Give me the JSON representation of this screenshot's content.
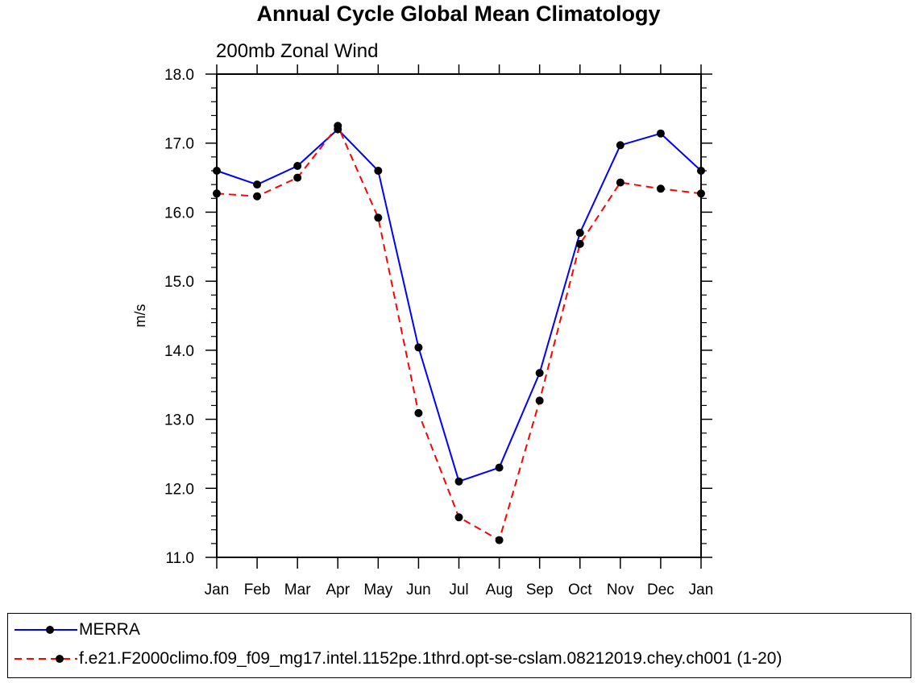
{
  "chart_data": {
    "type": "line",
    "title": "Annual Cycle Global Mean Climatology",
    "subtitle": "200mb Zonal Wind",
    "xlabel": "",
    "ylabel": "m/s",
    "categories": [
      "Jan",
      "Feb",
      "Mar",
      "Apr",
      "May",
      "Jun",
      "Jul",
      "Aug",
      "Sep",
      "Oct",
      "Nov",
      "Dec",
      "Jan"
    ],
    "ylim": [
      11.0,
      18.0
    ],
    "yticks": [
      "11.0",
      "12.0",
      "13.0",
      "14.0",
      "15.0",
      "16.0",
      "17.0",
      "18.0"
    ],
    "series": [
      {
        "name": "MERRA",
        "color": "#0000ff",
        "style": "solid",
        "values": [
          16.6,
          16.4,
          16.67,
          17.2,
          16.6,
          14.04,
          12.1,
          12.3,
          13.67,
          15.7,
          16.97,
          17.14,
          16.6
        ]
      },
      {
        "name": "f.e21.F2000climo.f09_f09_mg17.intel.1152pe.1thrd.opt-se-cslam.08212019.chey.ch001 (1-20)",
        "color": "#ff0000",
        "style": "dashed",
        "values": [
          16.27,
          16.23,
          16.5,
          17.25,
          15.92,
          13.09,
          11.58,
          11.25,
          13.27,
          15.54,
          16.43,
          16.34,
          16.27
        ]
      }
    ],
    "legend_position": "bottom",
    "marker_color": "#000000"
  }
}
